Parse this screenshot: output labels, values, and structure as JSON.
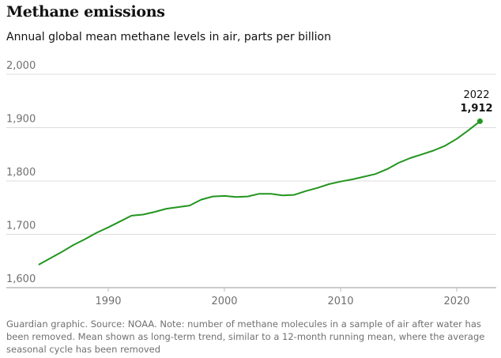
{
  "header": {
    "title": "Methane emissions",
    "subtitle": "Annual global mean methane levels in air, parts per billion"
  },
  "footer": {
    "note": "Guardian graphic. Source: NOAA. Note: number of methane molecules in a sample of air after water has been removed. Mean shown as long-term trend, similar to a 12-month running mean, where the average seasonal cycle has been removed"
  },
  "chart_data": {
    "type": "line",
    "title": "Methane emissions",
    "subtitle": "Annual global mean methane levels in air, parts per billion",
    "xlabel": "",
    "ylabel": "",
    "xlim": [
      1984,
      2022
    ],
    "ylim": [
      1600,
      2000
    ],
    "xticks": [
      1990,
      2000,
      2010,
      2020
    ],
    "xtick_labels": [
      "1990",
      "2000",
      "2010",
      "2020"
    ],
    "yticks": [
      1600,
      1700,
      1800,
      1900,
      2000
    ],
    "ytick_labels": [
      "1,600",
      "1,700",
      "1,800",
      "1,900",
      "2,000"
    ],
    "grid": "horizontal",
    "line_color": "#22951f",
    "x": [
      1984,
      1985,
      1986,
      1987,
      1988,
      1989,
      1990,
      1991,
      1992,
      1993,
      1994,
      1995,
      1996,
      1997,
      1998,
      1999,
      2000,
      2001,
      2002,
      2003,
      2004,
      2005,
      2006,
      2007,
      2008,
      2009,
      2010,
      2011,
      2012,
      2013,
      2014,
      2015,
      2016,
      2017,
      2018,
      2019,
      2020,
      2021,
      2022
    ],
    "values": [
      1643,
      1655,
      1667,
      1680,
      1691,
      1703,
      1713,
      1724,
      1735,
      1737,
      1742,
      1748,
      1751,
      1754,
      1765,
      1771,
      1772,
      1770,
      1771,
      1776,
      1776,
      1773,
      1774,
      1781,
      1787,
      1794,
      1799,
      1803,
      1808,
      1813,
      1822,
      1834,
      1843,
      1850,
      1857,
      1866,
      1879,
      1895,
      1912
    ],
    "annotation": {
      "year": "2022",
      "value": "1,912"
    }
  }
}
